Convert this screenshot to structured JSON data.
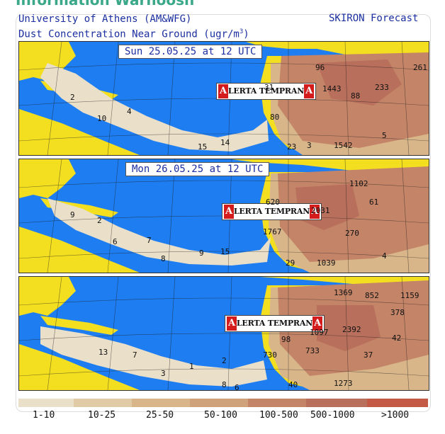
{
  "banner_text": "Information Warnoosh",
  "header": {
    "line1": "University of Athens (AM&WFG)",
    "line2_prefix": "Dust Concentration Near Ground (ugr/m",
    "line2_sup": "3",
    "line2_suffix": ")",
    "right": "SKIRON Forecast"
  },
  "logo": {
    "cap1": "A",
    "text": "LERTA TEMPRAN",
    "cap2": "A"
  },
  "colors": {
    "ocean": "#1e7df0",
    "land": "#f3df20",
    "c1_10": "#eadfc9",
    "c10_25": "#e1caa6",
    "c25_50": "#d8b68a",
    "c50_100": "#cfa27c",
    "c100_500": "#c48468",
    "c500_1000": "#b86f5c",
    "c_gt1000": "#c45a46"
  },
  "panels": [
    {
      "date": "Sun 25.05.25 at 12 UTC",
      "values": [
        "2",
        "10",
        "4",
        "15",
        "14",
        "23",
        "3",
        "1542",
        "31",
        "1443",
        "88",
        "233",
        "96",
        "80",
        "5",
        "261"
      ]
    },
    {
      "date": "Mon 26.05.25 at 12 UTC",
      "values": [
        "9",
        "2",
        "6",
        "7",
        "9",
        "15",
        "8",
        "29",
        "1039",
        "620",
        "2031",
        "1102",
        "61",
        "1767",
        "270",
        "4"
      ]
    },
    {
      "date": "",
      "values": [
        "13",
        "7",
        "2",
        "3",
        "1",
        "6",
        "8",
        "730",
        "733",
        "98",
        "1097",
        "2392",
        "1369",
        "852",
        "1159",
        "378",
        "42",
        "37",
        "1273",
        "40"
      ]
    }
  ],
  "legend": {
    "labels": [
      "1-10",
      "10-25",
      "25-50",
      "50-100",
      "100-500",
      "500-1000",
      ">1000"
    ]
  }
}
